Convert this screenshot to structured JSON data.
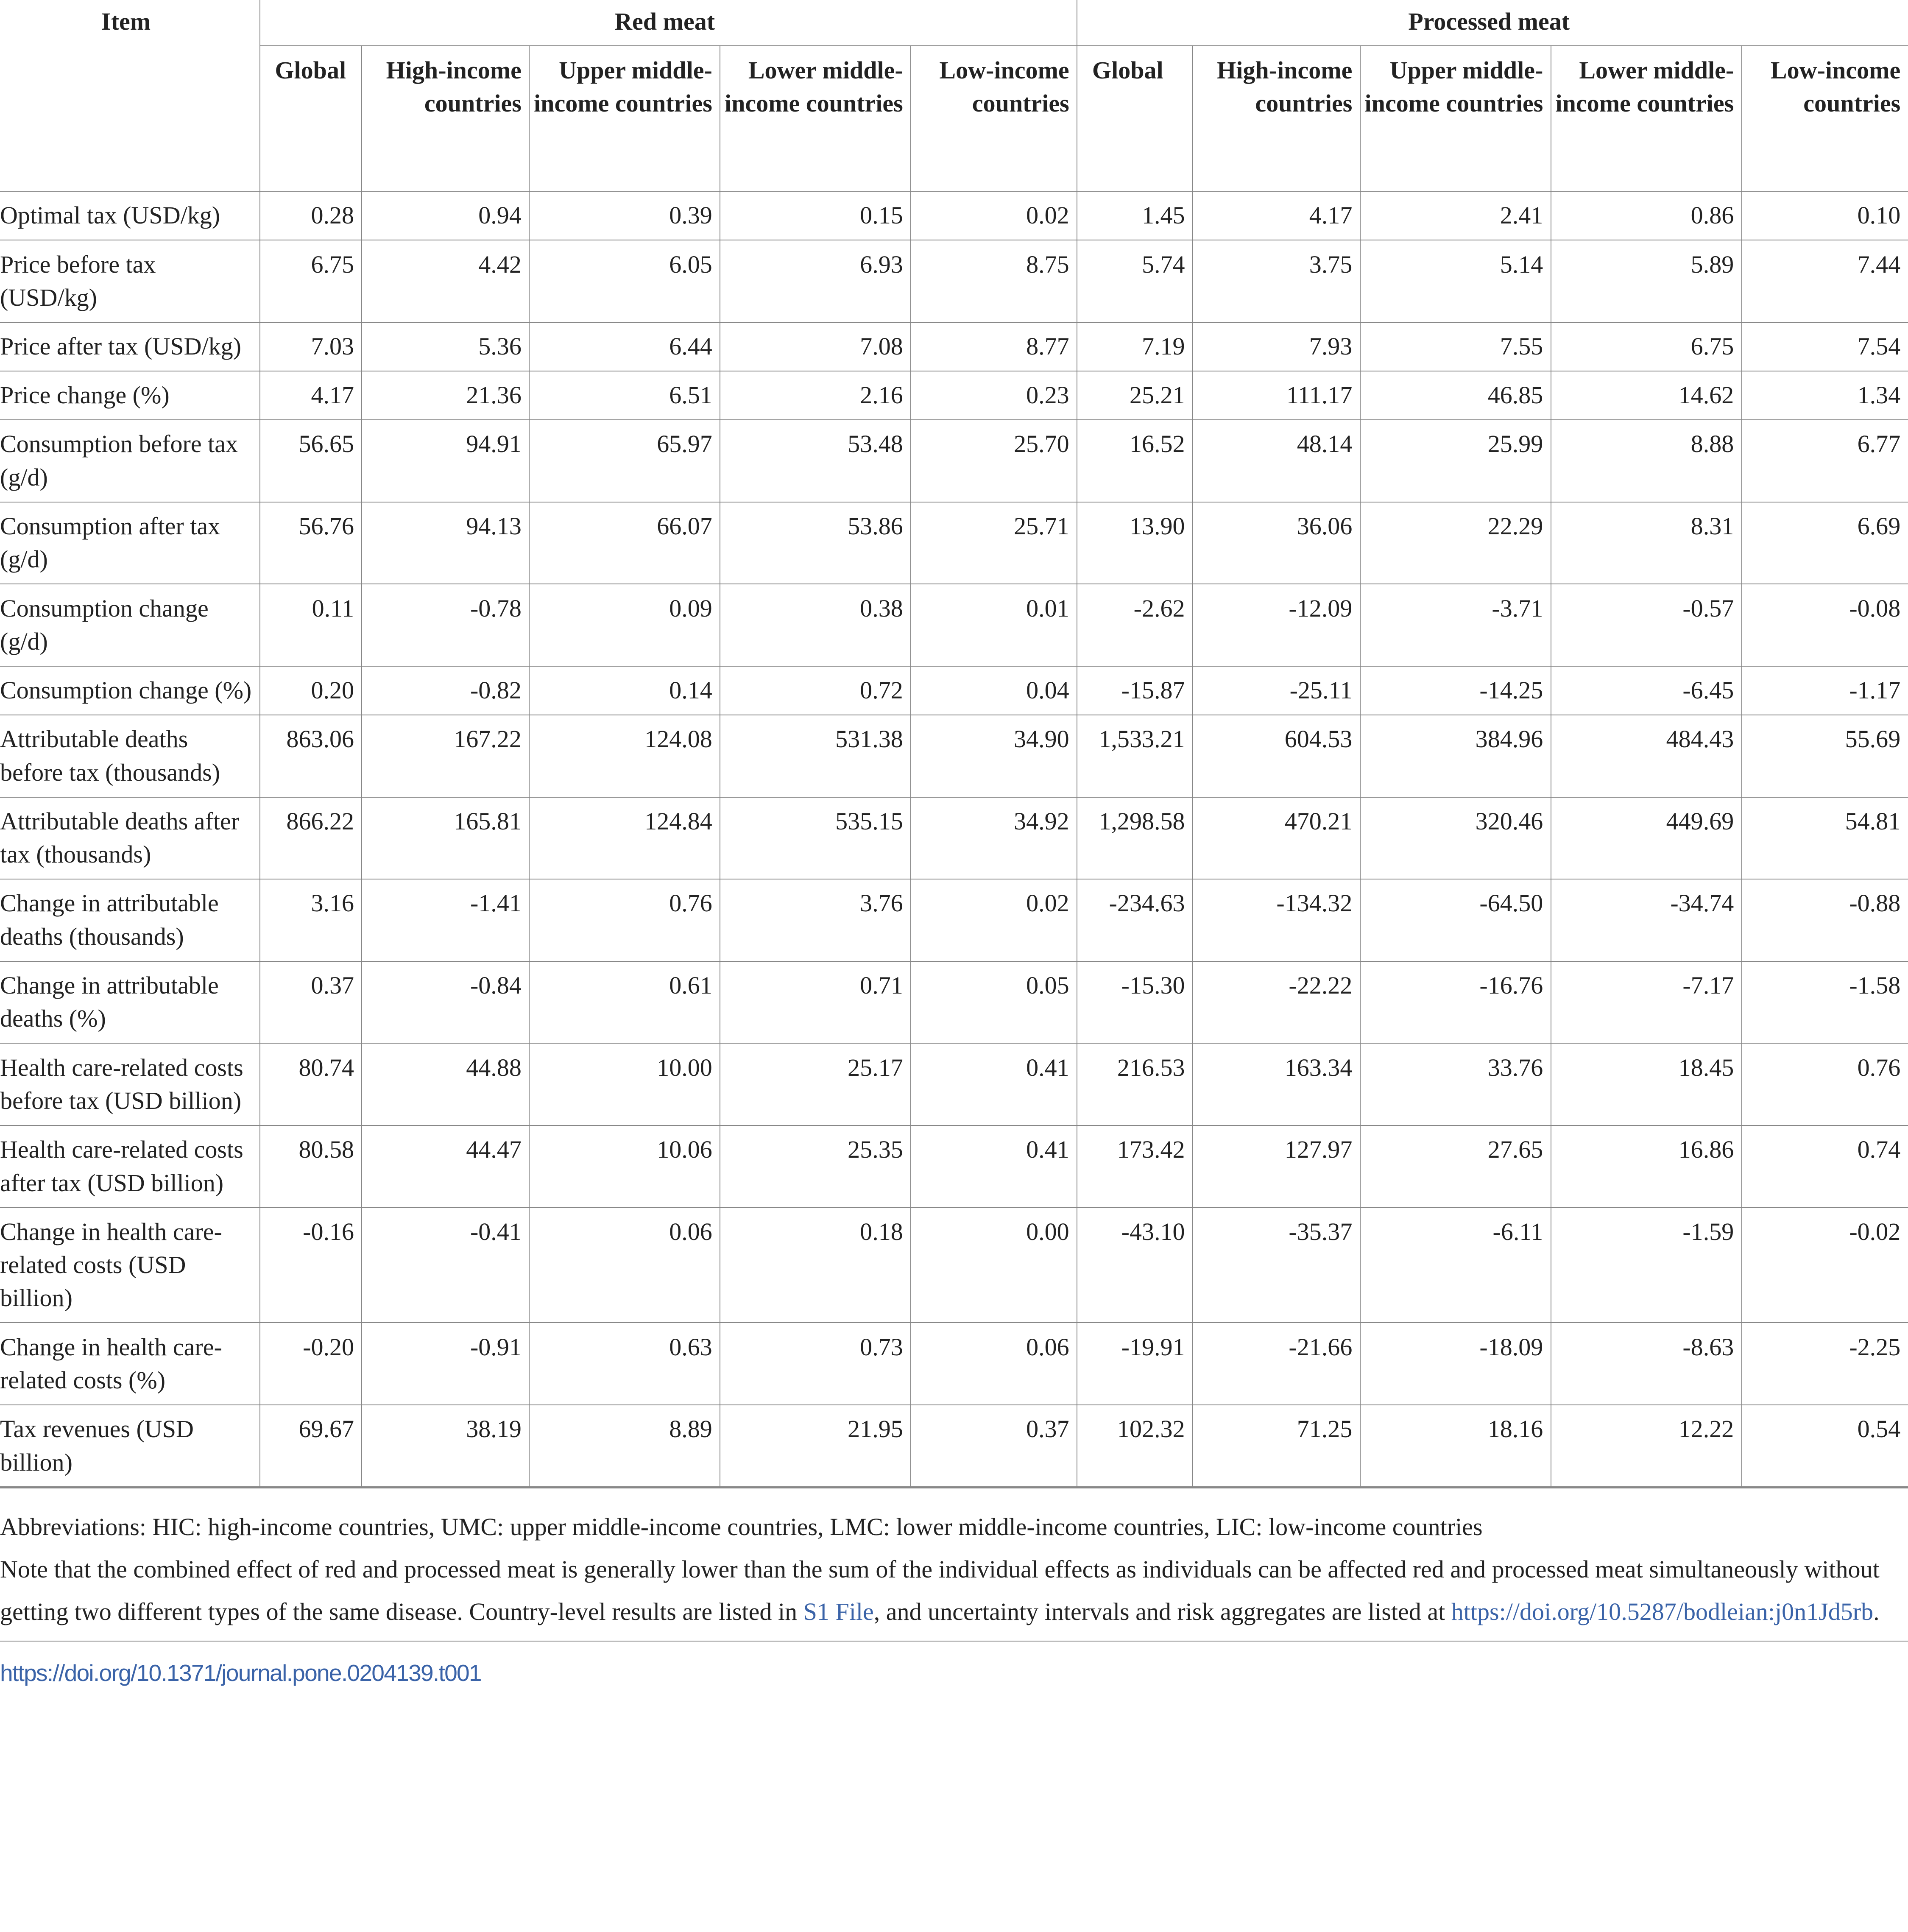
{
  "header": {
    "item": "Item",
    "groups": [
      "Red meat",
      "Processed meat"
    ],
    "subcolumns": [
      "Global",
      "High-income countries",
      "Upper middle-income countries",
      "Lower middle-income countries",
      "Low-income countries"
    ]
  },
  "rows": [
    {
      "label": "Optimal tax (USD/kg)",
      "values": [
        "0.28",
        "0.94",
        "0.39",
        "0.15",
        "0.02",
        "1.45",
        "4.17",
        "2.41",
        "0.86",
        "0.10"
      ]
    },
    {
      "label": "Price before tax (USD/kg)",
      "values": [
        "6.75",
        "4.42",
        "6.05",
        "6.93",
        "8.75",
        "5.74",
        "3.75",
        "5.14",
        "5.89",
        "7.44"
      ]
    },
    {
      "label": "Price after tax (USD/kg)",
      "values": [
        "7.03",
        "5.36",
        "6.44",
        "7.08",
        "8.77",
        "7.19",
        "7.93",
        "7.55",
        "6.75",
        "7.54"
      ]
    },
    {
      "label": "Price change (%)",
      "values": [
        "4.17",
        "21.36",
        "6.51",
        "2.16",
        "0.23",
        "25.21",
        "111.17",
        "46.85",
        "14.62",
        "1.34"
      ]
    },
    {
      "label": "Consumption before tax (g/d)",
      "values": [
        "56.65",
        "94.91",
        "65.97",
        "53.48",
        "25.70",
        "16.52",
        "48.14",
        "25.99",
        "8.88",
        "6.77"
      ]
    },
    {
      "label": "Consumption after tax (g/d)",
      "values": [
        "56.76",
        "94.13",
        "66.07",
        "53.86",
        "25.71",
        "13.90",
        "36.06",
        "22.29",
        "8.31",
        "6.69"
      ]
    },
    {
      "label": "Consumption change (g/d)",
      "values": [
        "0.11",
        "-0.78",
        "0.09",
        "0.38",
        "0.01",
        "-2.62",
        "-12.09",
        "-3.71",
        "-0.57",
        "-0.08"
      ]
    },
    {
      "label": "Consumption change (%)",
      "values": [
        "0.20",
        "-0.82",
        "0.14",
        "0.72",
        "0.04",
        "-15.87",
        "-25.11",
        "-14.25",
        "-6.45",
        "-1.17"
      ]
    },
    {
      "label": "Attributable deaths before tax (thousands)",
      "values": [
        "863.06",
        "167.22",
        "124.08",
        "531.38",
        "34.90",
        "1,533.21",
        "604.53",
        "384.96",
        "484.43",
        "55.69"
      ]
    },
    {
      "label": "Attributable deaths after tax (thousands)",
      "values": [
        "866.22",
        "165.81",
        "124.84",
        "535.15",
        "34.92",
        "1,298.58",
        "470.21",
        "320.46",
        "449.69",
        "54.81"
      ]
    },
    {
      "label": "Change in attributable deaths (thousands)",
      "values": [
        "3.16",
        "-1.41",
        "0.76",
        "3.76",
        "0.02",
        "-234.63",
        "-134.32",
        "-64.50",
        "-34.74",
        "-0.88"
      ]
    },
    {
      "label": "Change in attributable deaths (%)",
      "values": [
        "0.37",
        "-0.84",
        "0.61",
        "0.71",
        "0.05",
        "-15.30",
        "-22.22",
        "-16.76",
        "-7.17",
        "-1.58"
      ]
    },
    {
      "label": "Health care-related costs before tax (USD billion)",
      "values": [
        "80.74",
        "44.88",
        "10.00",
        "25.17",
        "0.41",
        "216.53",
        "163.34",
        "33.76",
        "18.45",
        "0.76"
      ]
    },
    {
      "label": "Health care-related costs after tax (USD billion)",
      "values": [
        "80.58",
        "44.47",
        "10.06",
        "25.35",
        "0.41",
        "173.42",
        "127.97",
        "27.65",
        "16.86",
        "0.74"
      ]
    },
    {
      "label": "Change in health care-related costs (USD billion)",
      "values": [
        "-0.16",
        "-0.41",
        "0.06",
        "0.18",
        "0.00",
        "-43.10",
        "-35.37",
        "-6.11",
        "-1.59",
        "-0.02"
      ]
    },
    {
      "label": "Change in health care-related costs (%)",
      "values": [
        "-0.20",
        "-0.91",
        "0.63",
        "0.73",
        "0.06",
        "-19.91",
        "-21.66",
        "-18.09",
        "-8.63",
        "-2.25"
      ]
    },
    {
      "label": "Tax revenues (USD billion)",
      "values": [
        "69.67",
        "38.19",
        "8.89",
        "21.95",
        "0.37",
        "102.32",
        "71.25",
        "18.16",
        "12.22",
        "0.54"
      ]
    }
  ],
  "footer": {
    "abbreviations": "Abbreviations: HIC: high-income countries, UMC: upper middle-income countries, LMC: lower middle-income countries, LIC: low-income countries",
    "note_part1": "Note that the combined effect of red and processed meat is generally lower than the sum of the individual effects as individuals can be affected red and processed meat simultaneously without getting two different types of the same disease. Country-level results are listed in ",
    "s1_link": "S1 File",
    "note_part2": ", and uncertainty intervals and risk aggregates are listed at ",
    "data_link": "https://doi.org/10.5287/bodleian:j0n1Jd5rb",
    "note_end": ".",
    "table_doi": "https://doi.org/10.1371/journal.pone.0204139.t001"
  },
  "colors": {
    "link": "#3a63a8",
    "rule": "#888888"
  }
}
